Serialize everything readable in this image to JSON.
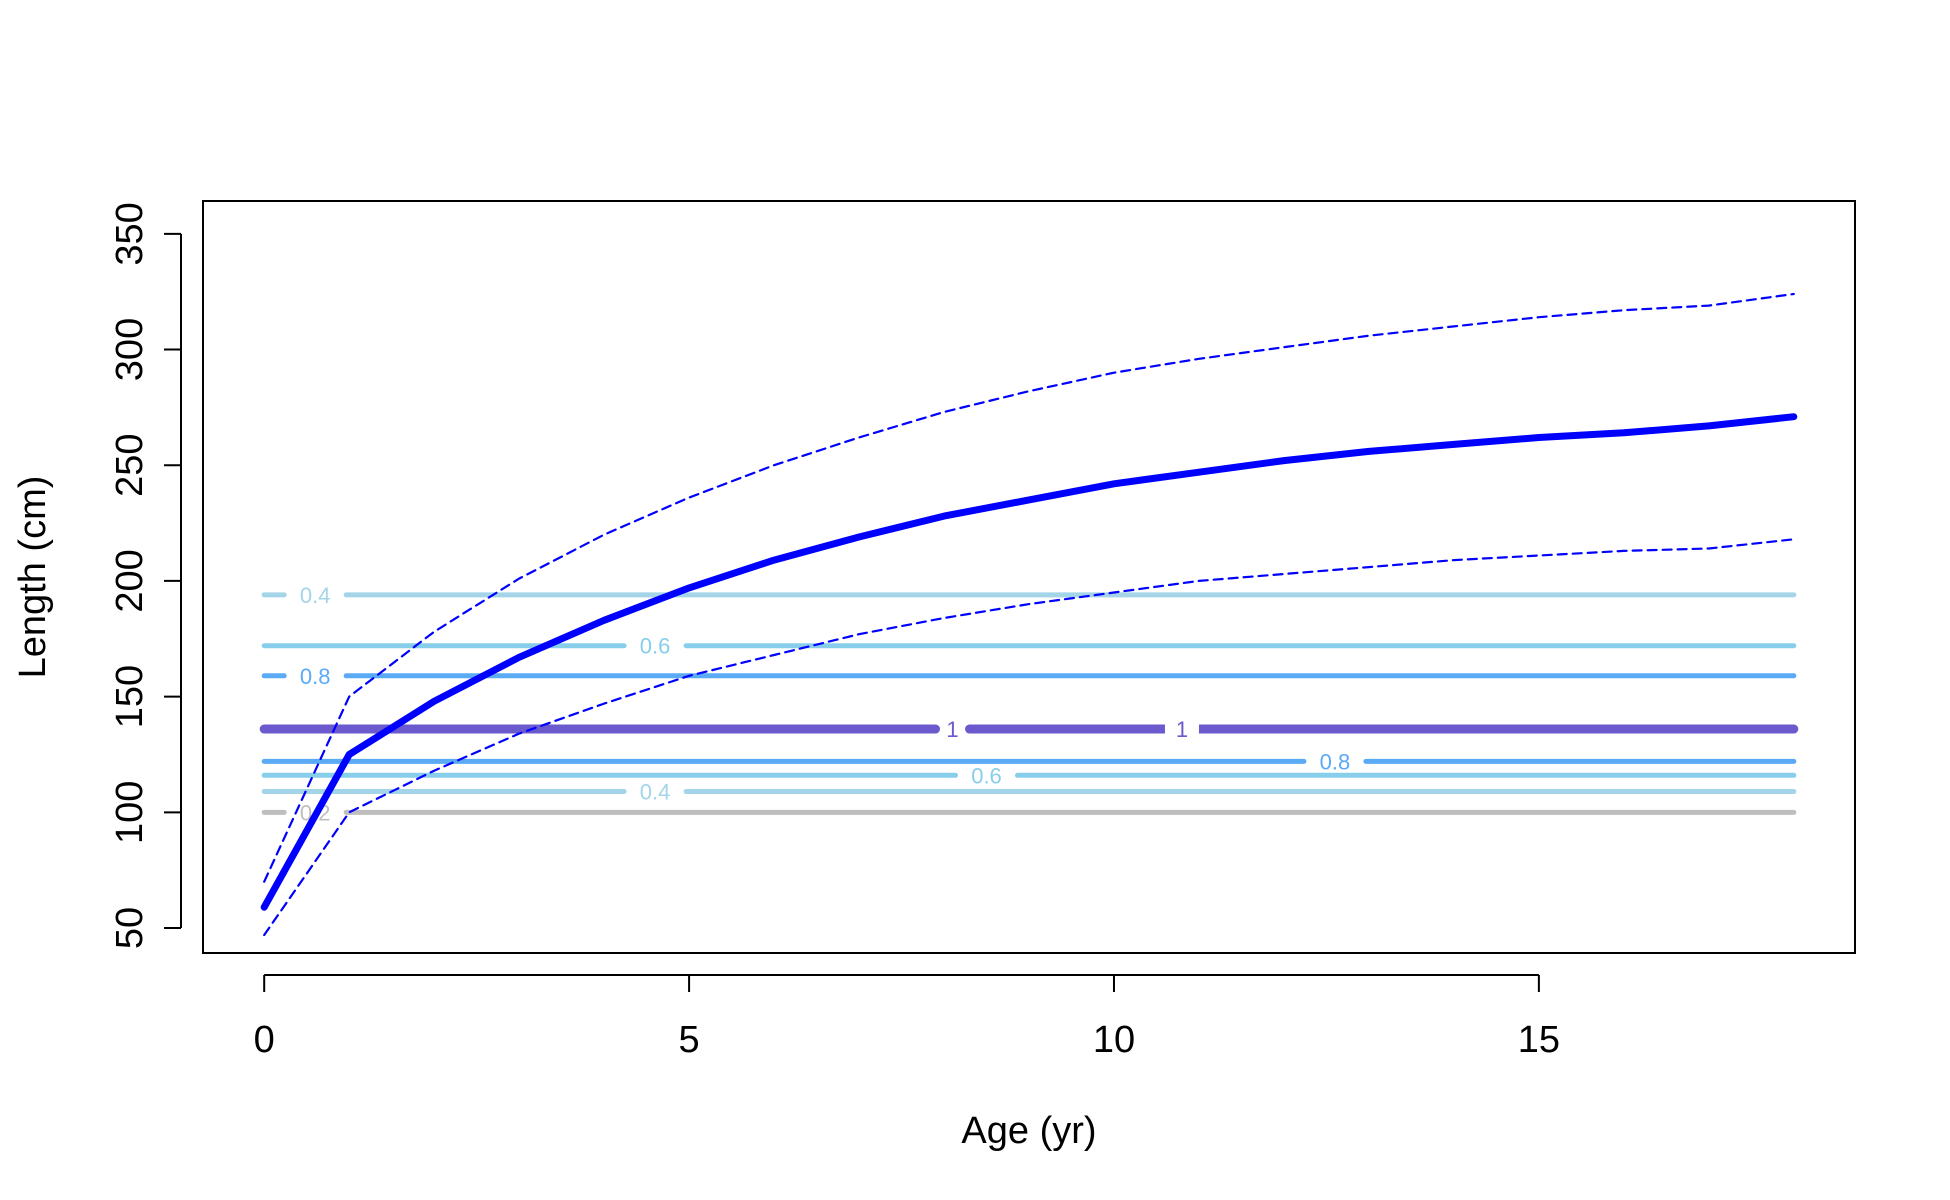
{
  "chart_data": {
    "type": "line",
    "title": "",
    "xlabel": "Age (yr)",
    "ylabel": "Length (cm)",
    "xlim": [
      -0.72,
      18.72
    ],
    "ylim": [
      39.2,
      364.2
    ],
    "xticks": [
      0,
      5,
      10,
      15
    ],
    "yticks": [
      50,
      100,
      150,
      200,
      250,
      300,
      350
    ],
    "grid": false,
    "legend": "none",
    "series": [
      {
        "role": "mean",
        "color": "#0000ff",
        "style": "solid-thick",
        "x": [
          0,
          1,
          2,
          3,
          4,
          5,
          6,
          7,
          8,
          9,
          10,
          11,
          12,
          13,
          14,
          15,
          16,
          17,
          18
        ],
        "y": [
          59,
          125,
          148,
          167,
          183,
          197,
          209,
          219,
          228,
          235,
          242,
          247,
          252,
          256,
          259,
          262,
          264,
          267,
          271
        ]
      },
      {
        "role": "upper",
        "color": "#0000ff",
        "style": "dashed",
        "x": [
          0,
          1,
          2,
          3,
          4,
          5,
          6,
          7,
          8,
          9,
          10,
          11,
          12,
          13,
          14,
          15,
          16,
          17,
          18
        ],
        "y": [
          70,
          150,
          178,
          201,
          220,
          236,
          250,
          262,
          273,
          282,
          290,
          296,
          301,
          306,
          310,
          314,
          317,
          319,
          324
        ]
      },
      {
        "role": "lower",
        "color": "#0000ff",
        "style": "dashed",
        "x": [
          0,
          1,
          2,
          3,
          4,
          5,
          6,
          7,
          8,
          9,
          10,
          11,
          12,
          13,
          14,
          15,
          16,
          17,
          18
        ],
        "y": [
          47,
          100,
          118,
          134,
          147,
          159,
          168,
          177,
          184,
          190,
          195,
          200,
          203,
          206,
          209,
          211,
          213,
          214,
          218
        ]
      }
    ],
    "contours": [
      {
        "level_label": "0.4",
        "y": 194,
        "color": "#a3d4e8",
        "label_x": 0.6
      },
      {
        "level_label": "0.6",
        "y": 172,
        "color": "#87ceeb",
        "label_x": 4.6
      },
      {
        "level_label": "0.8",
        "y": 159,
        "color": "#5aaaf5",
        "label_x": 0.6
      },
      {
        "level_label": "1",
        "y": 136,
        "color": "#6a5acd",
        "label_x": 8.1,
        "thick": true
      },
      {
        "level_label": "1",
        "y": 136,
        "color": "#6a5acd",
        "label_x": 10.8,
        "thick": true,
        "no_line": true
      },
      {
        "level_label": "0.8",
        "y": 122,
        "color": "#5aaaf5",
        "label_x": 12.6
      },
      {
        "level_label": "0.6",
        "y": 116,
        "color": "#87ceeb",
        "label_x": 8.5
      },
      {
        "level_label": "0.4",
        "y": 109,
        "color": "#a3d4e8",
        "label_x": 4.6
      },
      {
        "level_label": "0.2",
        "y": 100,
        "color": "#bebebe",
        "label_x": 0.6
      }
    ]
  }
}
